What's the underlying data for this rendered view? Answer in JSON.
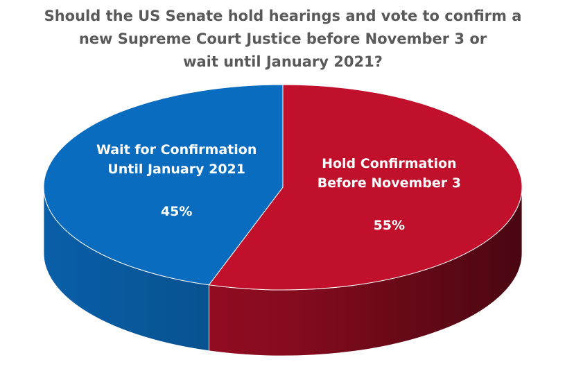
{
  "chart_data": {
    "type": "pie",
    "title": [
      "Should the US Senate hold hearings and vote to confirm a",
      "new Supreme Court Justice before November 3 or",
      "wait until January 2021?"
    ],
    "categories": [
      "Hold Confirmation Before November 3",
      "Wait for Confirmation Until January 2021"
    ],
    "values": [
      55,
      45
    ],
    "value_labels": [
      "55%",
      "45%"
    ],
    "colors": [
      "#c0102c",
      "#0a6cbf"
    ]
  }
}
